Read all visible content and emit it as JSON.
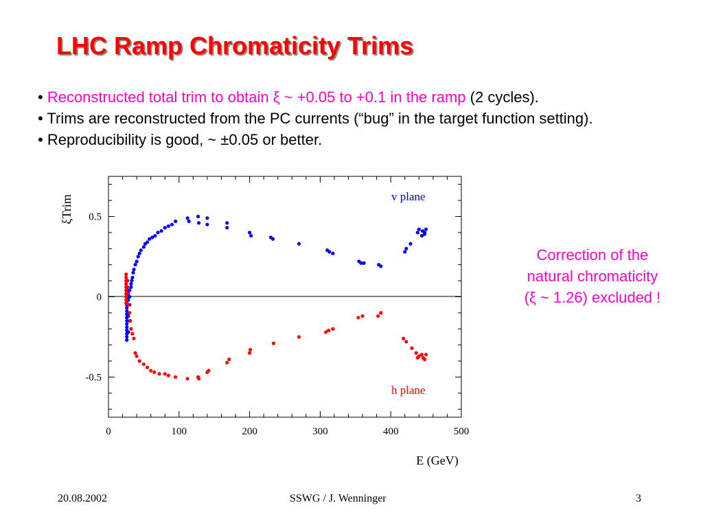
{
  "title": "LHC Ramp Chromaticity Trims",
  "bullets": [
    {
      "bullet": "•",
      "colored": "Reconstructed total trim to obtain ξ ~ +0.05 to +0.1 in the ramp",
      "rest": " (2 cycles)."
    },
    {
      "bullet": "•",
      "text": "Trims are reconstructed from the PC currents (“bug” in the target function setting)."
    },
    {
      "bullet": "•",
      "text": "Reproducibility is good, ~ ±0.05 or better."
    }
  ],
  "note": [
    "Correction of the",
    "natural chromaticity",
    "(ξ ~ 1.26) excluded !"
  ],
  "footer": {
    "date": "20.08.2002",
    "author": "SSWG / J. Wenninger",
    "page": "3"
  },
  "colors": {
    "title": "#ff0000",
    "highlight": "#ff00cc",
    "v_series": "#0000ff",
    "h_series": "#ff0000"
  },
  "chart_data": {
    "type": "scatter",
    "ylabel": "ξTrim",
    "xlabel": "E (GeV)",
    "xlim": [
      0,
      500
    ],
    "ylim": [
      -0.75,
      0.75
    ],
    "xticks": [
      0,
      100,
      200,
      300,
      400,
      500
    ],
    "yticks": [
      0.5,
      0,
      -0.5
    ],
    "ytick_labels": [
      "0.5",
      "0",
      "-0.5"
    ],
    "zero_line": true,
    "series": [
      {
        "name": "v plane",
        "label_placement": "top-right",
        "points": [
          [
            26,
            -0.27
          ],
          [
            26,
            -0.25
          ],
          [
            26,
            -0.23
          ],
          [
            26,
            -0.21
          ],
          [
            26,
            -0.19
          ],
          [
            26,
            -0.17
          ],
          [
            26,
            -0.15
          ],
          [
            26,
            -0.13
          ],
          [
            26,
            -0.11
          ],
          [
            26,
            -0.09
          ],
          [
            26,
            -0.07
          ],
          [
            26,
            -0.05
          ],
          [
            26,
            -0.03
          ],
          [
            26,
            -0.01
          ],
          [
            26,
            0.01
          ],
          [
            26,
            0.03
          ],
          [
            26,
            0.05
          ],
          [
            28,
            -0.22
          ],
          [
            28,
            -0.12
          ],
          [
            28,
            -0.02
          ],
          [
            28,
            0.02
          ],
          [
            30,
            -0.15
          ],
          [
            30,
            -0.05
          ],
          [
            30,
            0.0
          ],
          [
            30,
            0.04
          ],
          [
            32,
            0.06
          ],
          [
            32,
            0.08
          ],
          [
            33,
            0.1
          ],
          [
            34,
            0.12
          ],
          [
            35,
            0.15
          ],
          [
            36,
            0.17
          ],
          [
            38,
            0.2
          ],
          [
            40,
            0.22
          ],
          [
            42,
            0.25
          ],
          [
            44,
            0.27
          ],
          [
            46,
            0.29
          ],
          [
            50,
            0.31
          ],
          [
            52,
            0.33
          ],
          [
            55,
            0.34
          ],
          [
            58,
            0.36
          ],
          [
            62,
            0.37
          ],
          [
            66,
            0.38
          ],
          [
            70,
            0.4
          ],
          [
            75,
            0.41
          ],
          [
            80,
            0.43
          ],
          [
            85,
            0.44
          ],
          [
            90,
            0.45
          ],
          [
            95,
            0.47
          ],
          [
            112,
            0.49
          ],
          [
            114,
            0.47
          ],
          [
            127,
            0.5
          ],
          [
            128,
            0.46
          ],
          [
            140,
            0.49
          ],
          [
            140,
            0.45
          ],
          [
            168,
            0.46
          ],
          [
            168,
            0.43
          ],
          [
            200,
            0.4
          ],
          [
            202,
            0.38
          ],
          [
            230,
            0.37
          ],
          [
            233,
            0.36
          ],
          [
            270,
            0.33
          ],
          [
            310,
            0.29
          ],
          [
            313,
            0.28
          ],
          [
            318,
            0.27
          ],
          [
            355,
            0.22
          ],
          [
            358,
            0.21
          ],
          [
            362,
            0.21
          ],
          [
            383,
            0.2
          ],
          [
            386,
            0.19
          ],
          [
            420,
            0.28
          ],
          [
            422,
            0.3
          ],
          [
            428,
            0.33
          ],
          [
            438,
            0.4
          ],
          [
            440,
            0.42
          ],
          [
            445,
            0.41
          ],
          [
            448,
            0.4
          ],
          [
            450,
            0.42
          ],
          [
            444,
            0.38
          ],
          [
            448,
            0.39
          ]
        ]
      },
      {
        "name": "h plane",
        "label_placement": "bottom-right",
        "points": [
          [
            25,
            0.14
          ],
          [
            25,
            0.12
          ],
          [
            25,
            0.1
          ],
          [
            25,
            0.08
          ],
          [
            25,
            0.06
          ],
          [
            25,
            0.04
          ],
          [
            25,
            0.02
          ],
          [
            25,
            0.0
          ],
          [
            25,
            -0.02
          ],
          [
            25,
            -0.04
          ],
          [
            27,
            0.1
          ],
          [
            27,
            0.06
          ],
          [
            27,
            0.02
          ],
          [
            29,
            -0.05
          ],
          [
            30,
            -0.1
          ],
          [
            31,
            -0.15
          ],
          [
            32,
            -0.2
          ],
          [
            34,
            -0.23
          ],
          [
            36,
            -0.26
          ],
          [
            38,
            -0.35
          ],
          [
            40,
            -0.37
          ],
          [
            44,
            -0.4
          ],
          [
            50,
            -0.42
          ],
          [
            55,
            -0.44
          ],
          [
            60,
            -0.46
          ],
          [
            65,
            -0.47
          ],
          [
            72,
            -0.48
          ],
          [
            80,
            -0.48
          ],
          [
            85,
            -0.49
          ],
          [
            95,
            -0.5
          ],
          [
            112,
            -0.51
          ],
          [
            127,
            -0.5
          ],
          [
            128,
            -0.51
          ],
          [
            140,
            -0.47
          ],
          [
            142,
            -0.46
          ],
          [
            168,
            -0.41
          ],
          [
            171,
            -0.39
          ],
          [
            200,
            -0.35
          ],
          [
            201,
            -0.33
          ],
          [
            234,
            -0.29
          ],
          [
            270,
            -0.25
          ],
          [
            308,
            -0.22
          ],
          [
            312,
            -0.21
          ],
          [
            318,
            -0.2
          ],
          [
            354,
            -0.13
          ],
          [
            360,
            -0.12
          ],
          [
            382,
            -0.12
          ],
          [
            386,
            -0.1
          ],
          [
            418,
            -0.26
          ],
          [
            422,
            -0.28
          ],
          [
            430,
            -0.32
          ],
          [
            436,
            -0.35
          ],
          [
            440,
            -0.37
          ],
          [
            444,
            -0.36
          ],
          [
            446,
            -0.38
          ],
          [
            448,
            -0.39
          ],
          [
            450,
            -0.36
          ],
          [
            438,
            -0.38
          ]
        ]
      }
    ]
  }
}
